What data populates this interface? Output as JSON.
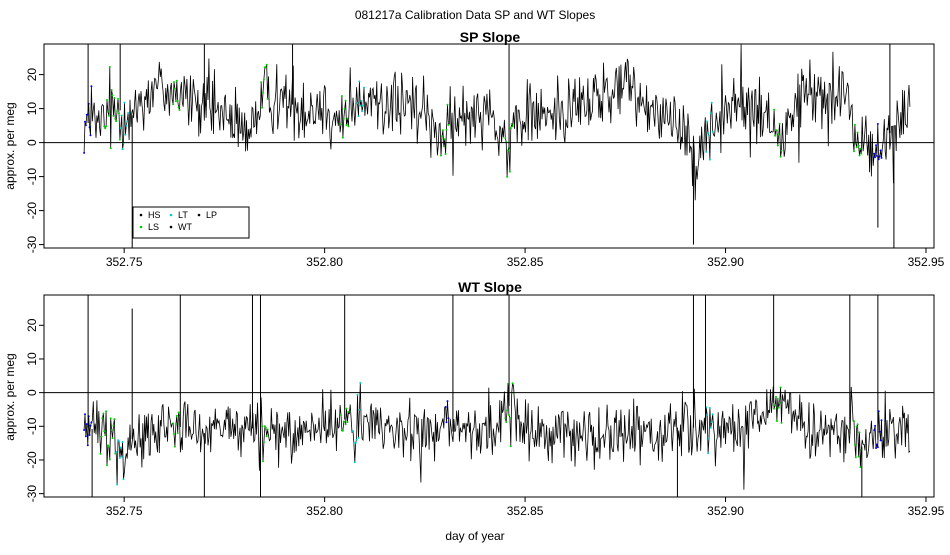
{
  "figure_title": "081217a   Calibration Data SP and WT Slopes",
  "colors": {
    "HS": "#000000",
    "LS": "#00cc00",
    "LT": "#00cccc",
    "WT": "#000000",
    "LP": "#0000ff",
    "trace": "#000000",
    "zero_line": "#000000"
  },
  "chart_data": [
    {
      "type": "line",
      "title": "SP Slope",
      "xlabel": "",
      "ylabel": "approx. per meg",
      "xlim": [
        352.73,
        352.952
      ],
      "ylim": [
        -31,
        29
      ],
      "x_ticks": [
        "352.75",
        "352.80",
        "352.85",
        "352.90",
        "352.95"
      ],
      "x_tick_values": [
        352.75,
        352.8,
        352.85,
        352.9,
        352.95
      ],
      "y_ticks": [
        "-30",
        "-20",
        "-10",
        "0",
        "10",
        "20"
      ],
      "y_tick_values": [
        -30,
        -20,
        -10,
        0,
        10,
        20
      ],
      "hline": 0,
      "legend": {
        "placement": "bottom-left",
        "entries": [
          {
            "label": "HS",
            "color": "#000000"
          },
          {
            "label": "LT",
            "color": "#00cccc"
          },
          {
            "label": "LP",
            "color": "#000000"
          },
          {
            "label": "LS",
            "color": "#00cc00"
          },
          {
            "label": "WT",
            "color": "#000000"
          }
        ]
      },
      "profile": [
        [
          352.74,
          6
        ],
        [
          352.744,
          5
        ],
        [
          352.748,
          10
        ],
        [
          352.752,
          8
        ],
        [
          352.755,
          14
        ],
        [
          352.758,
          16
        ],
        [
          352.762,
          16
        ],
        [
          352.766,
          12
        ],
        [
          352.77,
          10
        ],
        [
          352.775,
          8
        ],
        [
          352.78,
          2
        ],
        [
          352.785,
          14
        ],
        [
          352.79,
          12
        ],
        [
          352.795,
          10
        ],
        [
          352.8,
          11
        ],
        [
          352.805,
          5
        ],
        [
          352.81,
          12
        ],
        [
          352.815,
          12
        ],
        [
          352.82,
          11
        ],
        [
          352.825,
          8
        ],
        [
          352.83,
          2
        ],
        [
          352.835,
          8
        ],
        [
          352.84,
          12
        ],
        [
          352.846,
          -2
        ],
        [
          352.85,
          9
        ],
        [
          352.855,
          8
        ],
        [
          352.86,
          10
        ],
        [
          352.865,
          12
        ],
        [
          352.87,
          14
        ],
        [
          352.875,
          17
        ],
        [
          352.88,
          12
        ],
        [
          352.885,
          8
        ],
        [
          352.89,
          4
        ],
        [
          352.893,
          -3
        ],
        [
          352.9,
          10
        ],
        [
          352.905,
          11
        ],
        [
          352.91,
          8
        ],
        [
          352.914,
          0
        ],
        [
          352.918,
          12
        ],
        [
          352.922,
          14
        ],
        [
          352.926,
          15
        ],
        [
          352.93,
          10
        ],
        [
          352.934,
          1
        ],
        [
          352.938,
          -4
        ],
        [
          352.942,
          5
        ],
        [
          352.946,
          10
        ]
      ],
      "noise": 7,
      "spikes": [
        [
          352.741,
          29
        ],
        [
          352.749,
          29
        ],
        [
          352.752,
          -31
        ],
        [
          352.77,
          29
        ],
        [
          352.792,
          29
        ],
        [
          352.846,
          29
        ],
        [
          352.892,
          -30
        ],
        [
          352.941,
          29
        ],
        [
          352.942,
          -31
        ],
        [
          352.938,
          -25
        ]
      ],
      "colored_segments": [
        {
          "series": "LS",
          "x_range": [
            352.745,
            352.75
          ]
        },
        {
          "series": "LP",
          "x_range": [
            352.74,
            352.742
          ]
        },
        {
          "series": "LT",
          "x_range": [
            352.749,
            352.751
          ]
        },
        {
          "series": "LS",
          "x_range": [
            352.762,
            352.764
          ]
        },
        {
          "series": "LS",
          "x_range": [
            352.784,
            352.786
          ]
        },
        {
          "series": "LS",
          "x_range": [
            352.804,
            352.806
          ]
        },
        {
          "series": "LT",
          "x_range": [
            352.808,
            352.81
          ]
        },
        {
          "series": "LS",
          "x_range": [
            352.829,
            352.831
          ]
        },
        {
          "series": "LS",
          "x_range": [
            352.845,
            352.847
          ]
        },
        {
          "series": "LT",
          "x_range": [
            352.895,
            352.897
          ]
        },
        {
          "series": "LS",
          "x_range": [
            352.912,
            352.914
          ]
        },
        {
          "series": "LS",
          "x_range": [
            352.932,
            352.934
          ]
        },
        {
          "series": "LP",
          "x_range": [
            352.937,
            352.939
          ]
        }
      ]
    },
    {
      "type": "line",
      "title": "WT Slope",
      "xlabel": "day of year",
      "ylabel": "approx. per meg",
      "xlim": [
        352.73,
        352.952
      ],
      "ylim": [
        -31,
        29
      ],
      "x_ticks": [
        "352.75",
        "352.80",
        "352.85",
        "352.90",
        "352.95"
      ],
      "x_tick_values": [
        352.75,
        352.8,
        352.85,
        352.9,
        352.95
      ],
      "y_ticks": [
        "-30",
        "-20",
        "-10",
        "0",
        "10",
        "20"
      ],
      "y_tick_values": [
        -30,
        -20,
        -10,
        0,
        10,
        20
      ],
      "hline": 0,
      "profile": [
        [
          352.74,
          -10
        ],
        [
          352.745,
          -12
        ],
        [
          352.75,
          -15
        ],
        [
          352.755,
          -12
        ],
        [
          352.76,
          -11
        ],
        [
          352.765,
          -10
        ],
        [
          352.77,
          -12
        ],
        [
          352.775,
          -11
        ],
        [
          352.78,
          -9
        ],
        [
          352.785,
          -13
        ],
        [
          352.79,
          -12
        ],
        [
          352.795,
          -11
        ],
        [
          352.8,
          -10
        ],
        [
          352.805,
          -8
        ],
        [
          352.81,
          -9
        ],
        [
          352.815,
          -10
        ],
        [
          352.82,
          -12
        ],
        [
          352.825,
          -11
        ],
        [
          352.83,
          -10
        ],
        [
          352.835,
          -14
        ],
        [
          352.84,
          -12
        ],
        [
          352.846,
          -4
        ],
        [
          352.85,
          -11
        ],
        [
          352.855,
          -13
        ],
        [
          352.86,
          -12
        ],
        [
          352.865,
          -14
        ],
        [
          352.87,
          -13
        ],
        [
          352.875,
          -12
        ],
        [
          352.88,
          -13
        ],
        [
          352.885,
          -11
        ],
        [
          352.89,
          -10
        ],
        [
          352.895,
          -11
        ],
        [
          352.9,
          -12
        ],
        [
          352.905,
          -12
        ],
        [
          352.91,
          -6
        ],
        [
          352.914,
          0
        ],
        [
          352.918,
          -8
        ],
        [
          352.922,
          -10
        ],
        [
          352.926,
          -12
        ],
        [
          352.93,
          -11
        ],
        [
          352.934,
          -16
        ],
        [
          352.938,
          -14
        ],
        [
          352.942,
          -12
        ],
        [
          352.946,
          -12
        ]
      ],
      "noise": 6,
      "spikes": [
        [
          352.741,
          29
        ],
        [
          352.752,
          25
        ],
        [
          352.764,
          29
        ],
        [
          352.782,
          29
        ],
        [
          352.784,
          29
        ],
        [
          352.805,
          29
        ],
        [
          352.832,
          29
        ],
        [
          352.846,
          29
        ],
        [
          352.892,
          29
        ],
        [
          352.895,
          29
        ],
        [
          352.912,
          29
        ],
        [
          352.931,
          29
        ],
        [
          352.938,
          29
        ],
        [
          352.742,
          -31
        ],
        [
          352.77,
          -31
        ],
        [
          352.784,
          -31
        ],
        [
          352.888,
          -31
        ],
        [
          352.934,
          -31
        ]
      ],
      "colored_segments": [
        {
          "series": "LS",
          "x_range": [
            352.744,
            352.748
          ]
        },
        {
          "series": "LP",
          "x_range": [
            352.74,
            352.742
          ]
        },
        {
          "series": "LT",
          "x_range": [
            352.748,
            352.75
          ]
        },
        {
          "series": "LS",
          "x_range": [
            352.762,
            352.764
          ]
        },
        {
          "series": "LS",
          "x_range": [
            352.784,
            352.786
          ]
        },
        {
          "series": "LS",
          "x_range": [
            352.804,
            352.806
          ]
        },
        {
          "series": "LT",
          "x_range": [
            352.807,
            352.809
          ]
        },
        {
          "series": "LP",
          "x_range": [
            352.83,
            352.831
          ]
        },
        {
          "series": "LS",
          "x_range": [
            352.845,
            352.847
          ]
        },
        {
          "series": "LT",
          "x_range": [
            352.895,
            352.897
          ]
        },
        {
          "series": "LS",
          "x_range": [
            352.912,
            352.914
          ]
        },
        {
          "series": "LS",
          "x_range": [
            352.932,
            352.934
          ]
        },
        {
          "series": "LP",
          "x_range": [
            352.937,
            352.939
          ]
        }
      ]
    }
  ]
}
